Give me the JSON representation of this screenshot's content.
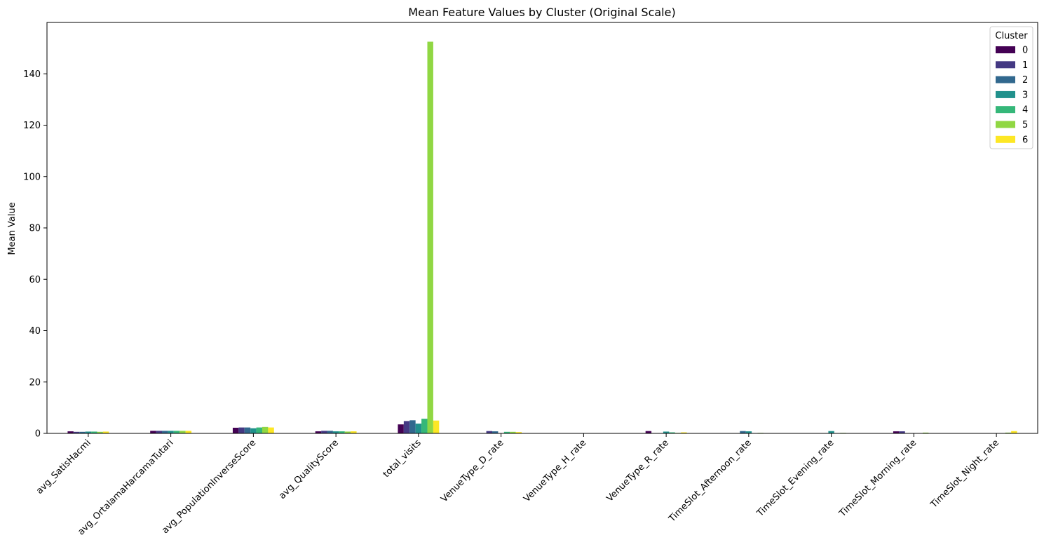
{
  "chart_data": {
    "type": "bar",
    "title": "Mean Feature Values by Cluster (Original Scale)",
    "xlabel": "",
    "ylabel": "Mean Value",
    "ylim": [
      0,
      160
    ],
    "yticks": [
      0,
      20,
      40,
      60,
      80,
      100,
      120,
      140
    ],
    "grid": false,
    "legend": {
      "title": "Cluster",
      "placement": "top-right"
    },
    "categories": [
      "avg_SatisHacmi",
      "avg_OrtalamaHarcamaTutari",
      "avg_PopulationInverseScore",
      "avg_QualityScore",
      "total_visits",
      "VenueType_D_rate",
      "VenueType_H_rate",
      "VenueType_R_rate",
      "TimeSlot_Afternoon_rate",
      "TimeSlot_Evening_rate",
      "TimeSlot_Morning_rate",
      "TimeSlot_Night_rate"
    ],
    "series": [
      {
        "name": "0",
        "color": "#440154",
        "values": [
          0.8,
          1.0,
          2.2,
          0.8,
          3.5,
          0.0,
          0.0,
          0.9,
          0.0,
          0.0,
          0.8,
          0.0
        ]
      },
      {
        "name": "1",
        "color": "#443983",
        "values": [
          0.6,
          1.0,
          2.3,
          1.0,
          4.8,
          0.9,
          0.0,
          0.0,
          0.0,
          0.0,
          0.8,
          0.0
        ]
      },
      {
        "name": "2",
        "color": "#31688e",
        "values": [
          0.6,
          1.0,
          2.3,
          1.0,
          5.1,
          0.8,
          0.0,
          0.0,
          0.9,
          0.0,
          0.0,
          0.0
        ]
      },
      {
        "name": "3",
        "color": "#21918c",
        "values": [
          0.7,
          1.0,
          2.0,
          0.8,
          3.8,
          0.0,
          0.0,
          0.7,
          0.8,
          0.9,
          0.0,
          0.0
        ]
      },
      {
        "name": "4",
        "color": "#35b779",
        "values": [
          0.7,
          1.0,
          2.3,
          0.8,
          5.7,
          0.6,
          0.0,
          0.4,
          0.0,
          0.0,
          0.0,
          0.0
        ]
      },
      {
        "name": "5",
        "color": "#90d743",
        "values": [
          0.6,
          1.0,
          2.5,
          0.7,
          152.5,
          0.6,
          0.0,
          0.2,
          0.2,
          0.2,
          0.3,
          0.3
        ]
      },
      {
        "name": "6",
        "color": "#fde725",
        "values": [
          0.7,
          1.0,
          2.3,
          0.8,
          5.0,
          0.5,
          0.0,
          0.4,
          0.0,
          0.0,
          0.0,
          0.9
        ]
      }
    ]
  }
}
